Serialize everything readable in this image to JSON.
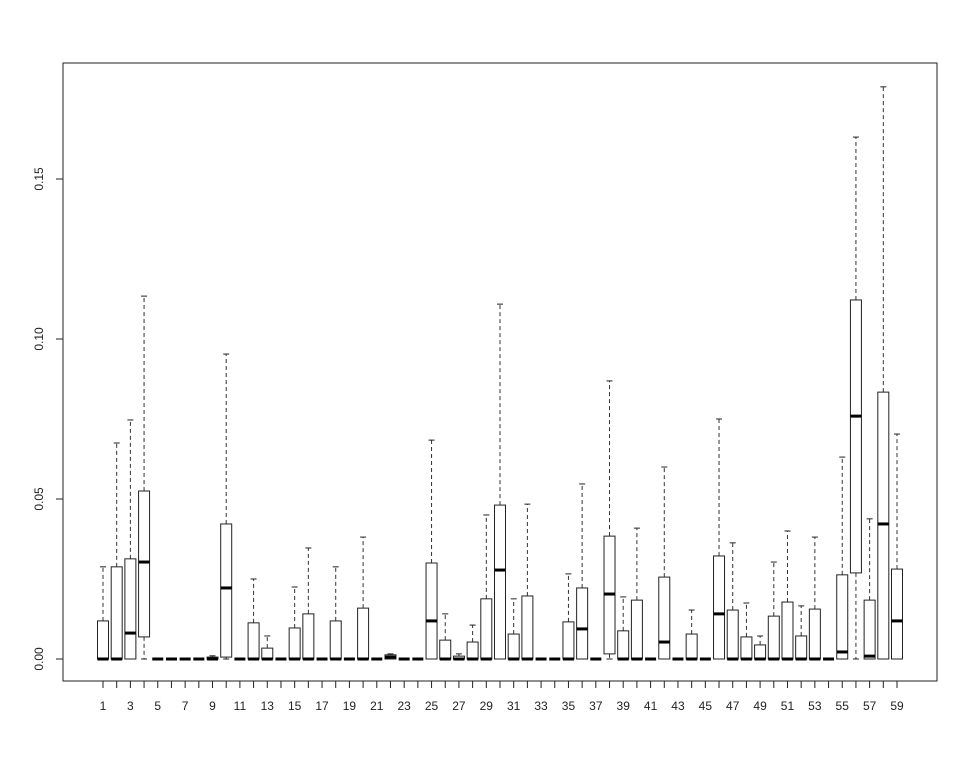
{
  "chart_data": {
    "type": "box",
    "categories": [
      "1",
      null,
      "3",
      null,
      "5",
      null,
      "7",
      null,
      "9",
      null,
      "11",
      null,
      "13",
      null,
      "15",
      null,
      "17",
      null,
      "19",
      null,
      "21",
      null,
      "23",
      null,
      "25",
      null,
      "27",
      null,
      "29",
      null,
      "31",
      null,
      "33",
      null,
      "35",
      null,
      "37",
      null,
      "39",
      null,
      "41",
      null,
      "43",
      null,
      "45",
      null,
      "47",
      null,
      "49",
      null,
      "51",
      null,
      "53",
      null,
      "55",
      null,
      "57",
      null,
      "59"
    ],
    "whisker_low": [
      0,
      0,
      0,
      0,
      0,
      0,
      0,
      0,
      0,
      0,
      0,
      0,
      0,
      0,
      0,
      0,
      0,
      0,
      0,
      0,
      0,
      0,
      0,
      0,
      0,
      0,
      0,
      0,
      0,
      0,
      0,
      0,
      0,
      0,
      0,
      0,
      0,
      0,
      0,
      0,
      0,
      0,
      0,
      0,
      0,
      0,
      0,
      0,
      0,
      0,
      0,
      0,
      0,
      0,
      0,
      0,
      0,
      0,
      0
    ],
    "q1": [
      0,
      0,
      0,
      0.0069,
      0,
      0,
      0,
      0,
      0,
      0.0006,
      0,
      0,
      0,
      0,
      0,
      0,
      0,
      0,
      0,
      0,
      0,
      0,
      0,
      0,
      0,
      0,
      0,
      0,
      0,
      0,
      0,
      0,
      0,
      0,
      0,
      0,
      0,
      0.0016,
      0,
      0,
      0,
      0,
      0,
      0,
      0,
      0,
      0,
      0,
      0,
      0,
      0,
      0,
      0,
      0,
      0,
      0.0269,
      0,
      0,
      0
    ],
    "median": [
      0,
      0,
      0.0081,
      0.0303,
      0,
      0,
      0,
      0,
      0,
      0.0222,
      0,
      0,
      0,
      0,
      0,
      0,
      0,
      0,
      0,
      0,
      0,
      0.0006,
      0,
      0,
      0.0119,
      0,
      0,
      0,
      0,
      0.0278,
      0,
      0,
      0,
      0,
      0,
      0.0094,
      0,
      0.0203,
      0,
      0,
      0,
      0.0053,
      0,
      0,
      0,
      0.0141,
      0,
      0,
      0,
      0,
      0,
      0,
      0,
      0,
      0.0022,
      0.0759,
      0.0009,
      0.0422,
      0.0119
    ],
    "q3": [
      0.0119,
      0.0288,
      0.0313,
      0.0525,
      0,
      0,
      0,
      0,
      0.0006,
      0.0422,
      0,
      0.0113,
      0.0034,
      0,
      0.0097,
      0.0141,
      0,
      0.0119,
      0,
      0.0159,
      0,
      0.0013,
      0,
      0,
      0.03,
      0.0059,
      0.0009,
      0.0053,
      0.0188,
      0.0481,
      0.0078,
      0.0197,
      0,
      0,
      0.0116,
      0.0222,
      0,
      0.0384,
      0.0088,
      0.0184,
      0,
      0.0256,
      0,
      0.0078,
      0,
      0.0322,
      0.0153,
      0.0069,
      0.0044,
      0.0134,
      0.0178,
      0.0072,
      0.0156,
      0,
      0.0263,
      0.1122,
      0.0184,
      0.0834,
      0.0281
    ],
    "whisker_high": [
      0.0288,
      0.0675,
      0.0747,
      0.1134,
      0,
      0,
      0,
      0,
      0.001,
      0.0953,
      0,
      0.025,
      0.0072,
      0,
      0.0225,
      0.0347,
      0,
      0.0288,
      0,
      0.0381,
      0,
      0.0016,
      0,
      0,
      0.0684,
      0.0141,
      0.0016,
      0.0106,
      0.045,
      0.1109,
      0.0188,
      0.0484,
      0,
      0,
      0.0266,
      0.0547,
      0,
      0.0869,
      0.0194,
      0.0409,
      0,
      0.06,
      0,
      0.0153,
      0,
      0.075,
      0.0363,
      0.0175,
      0.0072,
      0.0303,
      0.04,
      0.0166,
      0.0381,
      0,
      0.0631,
      0.1631,
      0.0438,
      0.1788,
      0.0703
    ],
    "ylim": [
      -0.006875,
      0.18625
    ],
    "yticks": [
      {
        "value": 0,
        "label": "0.00"
      },
      {
        "value": 0.05,
        "label": "0.05"
      },
      {
        "value": 0.1,
        "label": "0.10"
      },
      {
        "value": 0.15,
        "label": "0.15"
      }
    ],
    "color": "#ffffff"
  }
}
